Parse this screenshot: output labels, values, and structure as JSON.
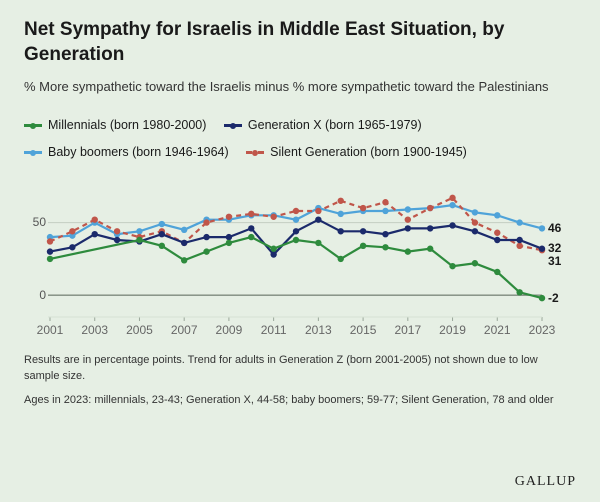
{
  "title": "Net Sympathy for Israelis in Middle East Situation, by Generation",
  "subtitle": "% More sympathetic toward the Israelis minus % more sympathetic toward the Palestinians",
  "legend": {
    "millennials": "Millennials (born 1980-2000)",
    "genx": "Generation X (born 1965-1979)",
    "boomers": "Baby boomers (born 1946-1964)",
    "silent": "Silent Generation (born 1900-1945)"
  },
  "footnote1": "Results are in percentage points. Trend for adults in Generation Z (born 2001-2005) not shown due to low sample size.",
  "footnote2": "Ages in 2023: millennials, 23-43; Generation X, 44-58; baby boomers; 59-77; Silent Generation, 78 and older",
  "source": "GALLUP",
  "chart": {
    "type": "line",
    "background_color": "#e6efe4",
    "grid_light": "#d7e2d4",
    "axis_color": "#9aa79a",
    "baseline_color": "#7d8a7d",
    "tick_color": "#666666",
    "title_fontsize": 19,
    "label_fontsize": 12,
    "xlim": [
      2001,
      2023
    ],
    "ylim": [
      -15,
      80
    ],
    "yticks": [
      0,
      50
    ],
    "xticks": [
      2001,
      2003,
      2005,
      2007,
      2009,
      2011,
      2013,
      2015,
      2017,
      2019,
      2021,
      2023
    ],
    "years": [
      2001,
      2002,
      2003,
      2004,
      2005,
      2006,
      2007,
      2008,
      2009,
      2010,
      2011,
      2012,
      2013,
      2014,
      2015,
      2016,
      2017,
      2018,
      2019,
      2020,
      2021,
      2022,
      2023
    ],
    "series": {
      "boomers": {
        "color": "#4fa3d9",
        "line_width": 2.2,
        "marker": "circle",
        "marker_size": 3.2,
        "dashed": false,
        "values": [
          40,
          41,
          50,
          42,
          44,
          49,
          45,
          52,
          52,
          55,
          55,
          52,
          60,
          56,
          58,
          58,
          59,
          60,
          62,
          57,
          55,
          50,
          46
        ],
        "end_label": "46"
      },
      "silent": {
        "color": "#c0564a",
        "line_width": 2.2,
        "marker": "circle",
        "marker_size": 3.2,
        "dashed": true,
        "values": [
          37,
          44,
          52,
          44,
          40,
          44,
          36,
          50,
          54,
          56,
          54,
          58,
          58,
          65,
          60,
          64,
          52,
          60,
          67,
          50,
          43,
          34,
          31
        ],
        "end_label": "31"
      },
      "genx": {
        "color": "#1b2a6b",
        "line_width": 2.2,
        "marker": "circle",
        "marker_size": 3.2,
        "dashed": false,
        "values": [
          30,
          33,
          42,
          38,
          37,
          42,
          36,
          40,
          40,
          46,
          28,
          44,
          52,
          44,
          44,
          42,
          46,
          46,
          48,
          44,
          38,
          38,
          32
        ],
        "end_label": "32"
      },
      "millennials": {
        "color": "#2e8b3d",
        "line_width": 2.2,
        "marker": "circle",
        "marker_size": 3.2,
        "dashed": false,
        "values": [
          25,
          null,
          null,
          null,
          38,
          34,
          24,
          30,
          36,
          40,
          32,
          38,
          36,
          25,
          34,
          33,
          30,
          32,
          20,
          22,
          16,
          2,
          -2
        ],
        "end_label": "-2"
      }
    }
  }
}
